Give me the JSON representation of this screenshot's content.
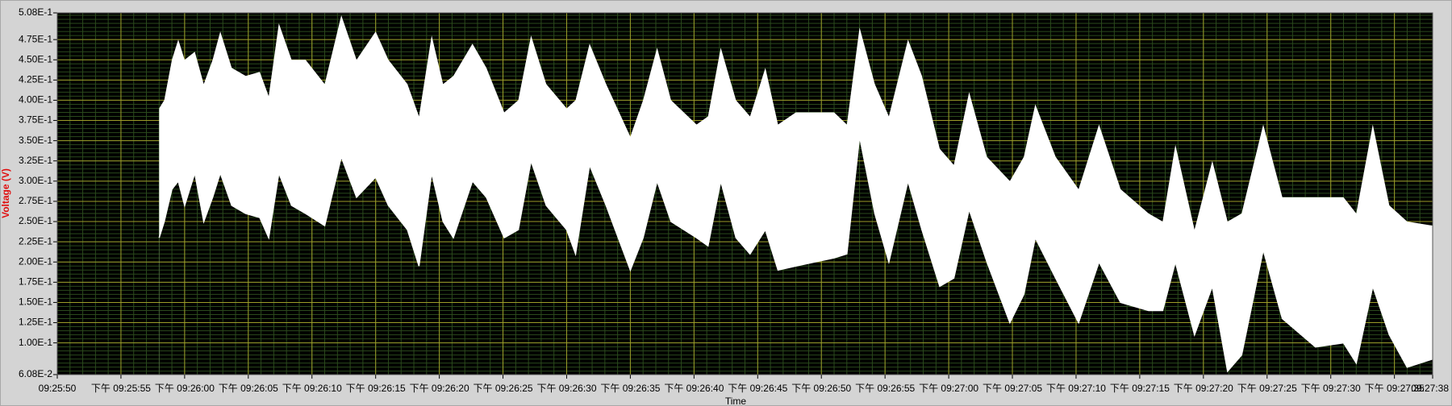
{
  "chart_data": {
    "type": "area_range",
    "y_label": "Voltage (V)",
    "x_label": "Time",
    "xlim": [
      "09:25:50",
      "09:27:38"
    ],
    "xticks": [
      "09:25:50",
      {
        "value": "09:25:55",
        "label": "下午 09:25:55"
      },
      {
        "value": "09:26:00",
        "label": "下午 09:26:00"
      },
      {
        "value": "09:26:05",
        "label": "下午 09:26:05"
      },
      {
        "value": "09:26:10",
        "label": "下午 09:26:10"
      },
      {
        "value": "09:26:15",
        "label": "下午 09:26:15"
      },
      {
        "value": "09:26:20",
        "label": "下午 09:26:20"
      },
      {
        "value": "09:26:25",
        "label": "下午 09:26:25"
      },
      {
        "value": "09:26:30",
        "label": "下午 09:26:30"
      },
      {
        "value": "09:26:35",
        "label": "下午 09:26:35"
      },
      {
        "value": "09:26:40",
        "label": "下午 09:26:40"
      },
      {
        "value": "09:26:45",
        "label": "下午 09:26:45"
      },
      {
        "value": "09:26:50",
        "label": "下午 09:26:50"
      },
      {
        "value": "09:26:55",
        "label": "下午 09:26:55"
      },
      {
        "value": "09:27:00",
        "label": "下午 09:27:00"
      },
      {
        "value": "09:27:05",
        "label": "下午 09:27:05"
      },
      {
        "value": "09:27:10",
        "label": "下午 09:27:10"
      },
      {
        "value": "09:27:15",
        "label": "下午 09:27:15"
      },
      {
        "value": "09:27:20",
        "label": "下午 09:27:20"
      },
      {
        "value": "09:27:25",
        "label": "下午 09:27:25"
      },
      {
        "value": "09:27:30",
        "label": "下午 09:27:30"
      },
      {
        "value": "09:27:35",
        "label": "下午 09:27:35"
      },
      "09:27:38"
    ],
    "ylim": [
      0.0608,
      0.508
    ],
    "yticks": [
      {
        "value": 0.0608,
        "label": "6.08E-2"
      },
      {
        "value": 0.1,
        "label": "1.00E-1"
      },
      {
        "value": 0.125,
        "label": "1.25E-1"
      },
      {
        "value": 0.15,
        "label": "1.50E-1"
      },
      {
        "value": 0.175,
        "label": "1.75E-1"
      },
      {
        "value": 0.2,
        "label": "2.00E-1"
      },
      {
        "value": 0.225,
        "label": "2.25E-1"
      },
      {
        "value": 0.25,
        "label": "2.50E-1"
      },
      {
        "value": 0.275,
        "label": "2.75E-1"
      },
      {
        "value": 0.3,
        "label": "3.00E-1"
      },
      {
        "value": 0.325,
        "label": "3.25E-1"
      },
      {
        "value": 0.35,
        "label": "3.50E-1"
      },
      {
        "value": 0.375,
        "label": "3.75E-1"
      },
      {
        "value": 0.4,
        "label": "4.00E-1"
      },
      {
        "value": 0.425,
        "label": "4.25E-1"
      },
      {
        "value": 0.45,
        "label": "4.50E-1"
      },
      {
        "value": 0.475,
        "label": "4.75E-1"
      },
      {
        "value": 0.508,
        "label": "5.08E-1"
      }
    ],
    "grid": true,
    "minor_grid": true,
    "background": "#000000",
    "grid_color": "#9c9c28",
    "minor_grid_color": "#2b4a1c",
    "x": [
      "09:25:58.0",
      "09:25:58.4",
      "09:25:59.0",
      "09:25:59.5",
      "09:26:00.0",
      "09:26:00.8",
      "09:26:01.5",
      "09:26:02.2",
      "09:26:02.8",
      "09:26:03.7",
      "09:26:04.8",
      "09:26:05.9",
      "09:26:06.6",
      "09:26:07.4",
      "09:26:08.4",
      "09:26:09.5",
      "09:26:11.0",
      "09:26:12.3",
      "09:26:13.5",
      "09:26:15.0",
      "09:26:16.0",
      "09:26:17.5",
      "09:26:18.4",
      "09:26:19.4",
      "09:26:20.3",
      "09:26:21.1",
      "09:26:22.6",
      "09:26:23.7",
      "09:26:25.1",
      "09:26:26.2",
      "09:26:27.2",
      "09:26:28.4",
      "09:26:30.0",
      "09:26:30.7",
      "09:26:31.8",
      "09:26:33.1",
      "09:26:35.0",
      "09:26:36.0",
      "09:26:37.1",
      "09:26:38.2",
      "09:26:40.2",
      "09:26:41.1",
      "09:26:42.1",
      "09:26:43.3",
      "09:26:44.4",
      "09:26:45.6",
      "09:26:46.6",
      "09:26:48.0",
      "09:26:49.5",
      "09:26:51.0",
      "09:26:52.0",
      "09:26:53.0",
      "09:26:54.2",
      "09:26:55.3",
      "09:26:56.8",
      "09:26:57.9",
      "09:26:59.3",
      "09:27:00.4",
      "09:27:01.6",
      "09:27:03.0",
      "09:27:04.8",
      "09:27:05.9",
      "09:27:06.8",
      "09:27:08.4",
      "09:27:10.2",
      "09:27:11.8",
      "09:27:13.5",
      "09:27:15.7",
      "09:27:16.8",
      "09:27:17.8",
      "09:27:19.3",
      "09:27:20.7",
      "09:27:21.9",
      "09:27:23.0",
      "09:27:24.7",
      "09:27:26.2",
      "09:27:28.8",
      "09:27:31.0",
      "09:27:32.0",
      "09:27:33.3",
      "09:27:34.6",
      "09:27:36.0",
      "09:27:38.0"
    ],
    "series": [
      {
        "color": "#ffffff",
        "values": [
          0.39,
          0.4,
          0.45,
          0.475,
          0.45,
          0.46,
          0.42,
          0.45,
          0.485,
          0.44,
          0.43,
          0.435,
          0.405,
          0.495,
          0.45,
          0.45,
          0.42,
          0.505,
          0.45,
          0.485,
          0.45,
          0.42,
          0.38,
          0.48,
          0.42,
          0.43,
          0.47,
          0.44,
          0.385,
          0.4,
          0.48,
          0.42,
          0.39,
          0.4,
          0.47,
          0.42,
          0.355,
          0.4,
          0.465,
          0.4,
          0.37,
          0.38,
          0.465,
          0.4,
          0.38,
          0.44,
          0.37,
          0.385,
          0.385,
          0.385,
          0.37,
          0.49,
          0.42,
          0.38,
          0.475,
          0.43,
          0.34,
          0.32,
          0.41,
          0.33,
          0.3,
          0.33,
          0.395,
          0.33,
          0.29,
          0.37,
          0.29,
          0.26,
          0.25,
          0.345,
          0.24,
          0.325,
          0.25,
          0.26,
          0.37,
          0.28,
          0.28,
          0.28,
          0.26,
          0.37,
          0.27,
          0.25,
          0.245
        ]
      },
      {
        "color": "#ffffff",
        "values": [
          0.23,
          0.25,
          0.29,
          0.3,
          0.27,
          0.31,
          0.25,
          0.28,
          0.31,
          0.27,
          0.26,
          0.255,
          0.23,
          0.31,
          0.27,
          0.26,
          0.245,
          0.33,
          0.28,
          0.305,
          0.27,
          0.24,
          0.195,
          0.31,
          0.25,
          0.23,
          0.3,
          0.28,
          0.23,
          0.24,
          0.325,
          0.27,
          0.24,
          0.21,
          0.32,
          0.27,
          0.19,
          0.23,
          0.3,
          0.25,
          0.23,
          0.22,
          0.3,
          0.23,
          0.21,
          0.24,
          0.19,
          0.195,
          0.2,
          0.205,
          0.21,
          0.355,
          0.26,
          0.2,
          0.3,
          0.24,
          0.17,
          0.18,
          0.265,
          0.2,
          0.125,
          0.16,
          0.23,
          0.18,
          0.125,
          0.2,
          0.15,
          0.14,
          0.14,
          0.2,
          0.11,
          0.17,
          0.065,
          0.085,
          0.215,
          0.13,
          0.095,
          0.1,
          0.075,
          0.17,
          0.11,
          0.07,
          0.08
        ]
      }
    ]
  }
}
